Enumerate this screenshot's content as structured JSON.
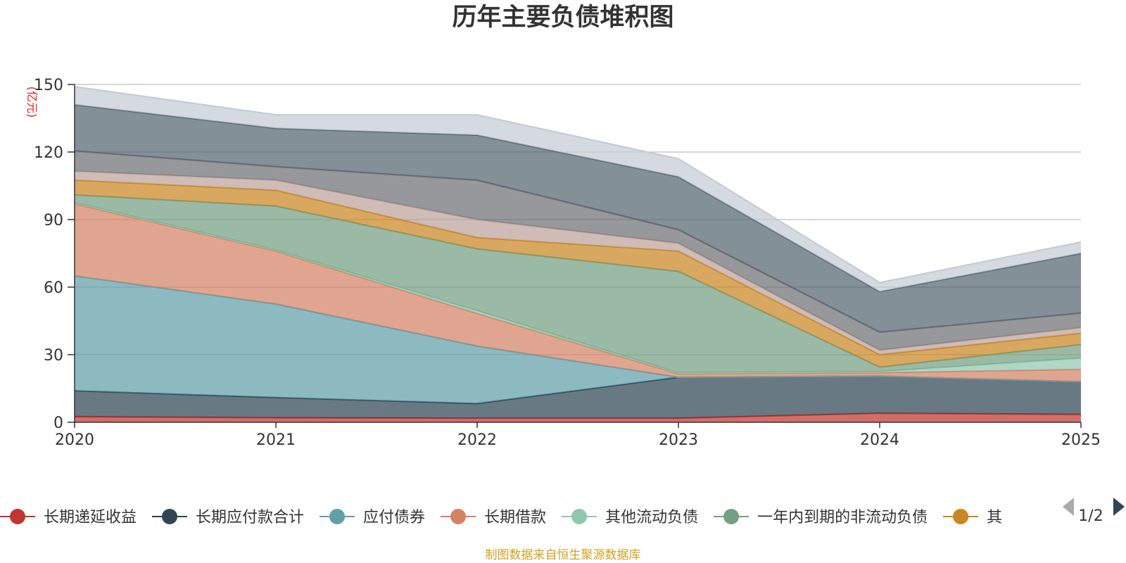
{
  "chart_data": {
    "type": "area",
    "stacked": true,
    "title": "历年主要负债堆积图",
    "unit_label": "(亿元)",
    "xlabel": "",
    "ylabel": "(亿元)",
    "ylim": [
      0,
      150
    ],
    "yticks": [
      0,
      30,
      60,
      90,
      120,
      150
    ],
    "categories": [
      "2020",
      "2021",
      "2022",
      "2023",
      "2024",
      "2025"
    ],
    "grid": true,
    "series": [
      {
        "name": "长期递延收益",
        "color": "#c23531",
        "values": [
          2.5,
          2.0,
          1.8,
          1.8,
          4.0,
          3.5
        ]
      },
      {
        "name": "长期应付款合计",
        "color": "#2f4554",
        "values": [
          11.5,
          9.0,
          6.5,
          18.2,
          16.5,
          14.5
        ]
      },
      {
        "name": "应付债券",
        "color": "#61a0a8",
        "values": [
          51.0,
          41.5,
          25.5,
          0.0,
          0.0,
          0.0
        ]
      },
      {
        "name": "长期借款",
        "color": "#d48265",
        "values": [
          32.0,
          23.5,
          14.5,
          1.5,
          1.5,
          5.5
        ]
      },
      {
        "name": "其他流动负债",
        "color": "#91c7ae",
        "values": [
          0.5,
          0.5,
          1.2,
          0.5,
          0.5,
          5.0
        ]
      },
      {
        "name": "一年内到期的非流动负债",
        "color": "#749f83",
        "values": [
          3.5,
          19.5,
          27.5,
          45.0,
          2.0,
          6.0
        ]
      },
      {
        "name": "其",
        "color": "#ca8622",
        "values": [
          6.5,
          7.0,
          5.0,
          9.0,
          5.5,
          5.0
        ]
      },
      {
        "name": "",
        "color": "#bda29a",
        "values": [
          4.0,
          4.5,
          8.0,
          3.5,
          2.0,
          2.5
        ]
      },
      {
        "name": "",
        "color": "#6e7074",
        "values": [
          9.0,
          6.0,
          17.5,
          6.0,
          8.0,
          6.5
        ]
      },
      {
        "name": "",
        "color": "#546570",
        "values": [
          20.5,
          17.0,
          20.0,
          23.5,
          18.0,
          26.5
        ]
      },
      {
        "name": "",
        "color": "#c4ccd3",
        "values": [
          8.0,
          6.0,
          9.0,
          8.0,
          4.0,
          5.0
        ]
      }
    ],
    "legend": {
      "position": "bottom",
      "visible_items": [
        "长期递延收益",
        "长期应付款合计",
        "应付债券",
        "长期借款",
        "其他流动负债",
        "一年内到期的非流动负债",
        "其"
      ],
      "page": "1/2"
    },
    "source_note": "制图数据来自恒生聚源数据库"
  }
}
